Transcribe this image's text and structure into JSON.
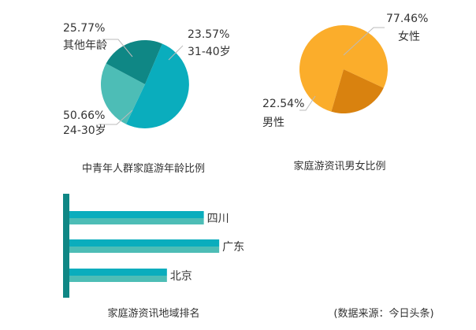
{
  "colors": {
    "teal_main": "#0aadbd",
    "teal_light": "#4dbdb6",
    "teal_dark": "#0f8785",
    "orange_main": "#fbad2b",
    "orange_dark": "#d9820f",
    "axis_bar": "#0f8785",
    "text": "#333333",
    "leader": "#bbbbbb"
  },
  "source_note": "(数据来源：今日头条)",
  "chart_data": [
    {
      "type": "pie",
      "title": "中青年人群家庭游年龄比例",
      "slices": [
        {
          "label": "24-30岁",
          "value": 50.66,
          "value_text": "50.66%",
          "color": "#0aadbd"
        },
        {
          "label": "其他年龄",
          "value": 25.77,
          "value_text": "25.77%",
          "color": "#4dbdb6"
        },
        {
          "label": "31-40岁",
          "value": 23.57,
          "value_text": "23.57%",
          "color": "#0f8785"
        }
      ]
    },
    {
      "type": "pie",
      "title": "家庭游资讯男女比例",
      "slices": [
        {
          "label": "女性",
          "value": 77.46,
          "value_text": "77.46%",
          "color": "#fbad2b"
        },
        {
          "label": "男性",
          "value": 22.54,
          "value_text": "22.54%",
          "color": "#d9820f"
        }
      ]
    },
    {
      "type": "bar",
      "orientation": "horizontal",
      "title": "家庭游资讯地域排名",
      "categories": [
        "四川",
        "广东",
        "北京"
      ],
      "values": [
        175,
        195,
        127
      ],
      "xlim": [
        0,
        200
      ],
      "grid": false,
      "axis_labels": false
    }
  ]
}
